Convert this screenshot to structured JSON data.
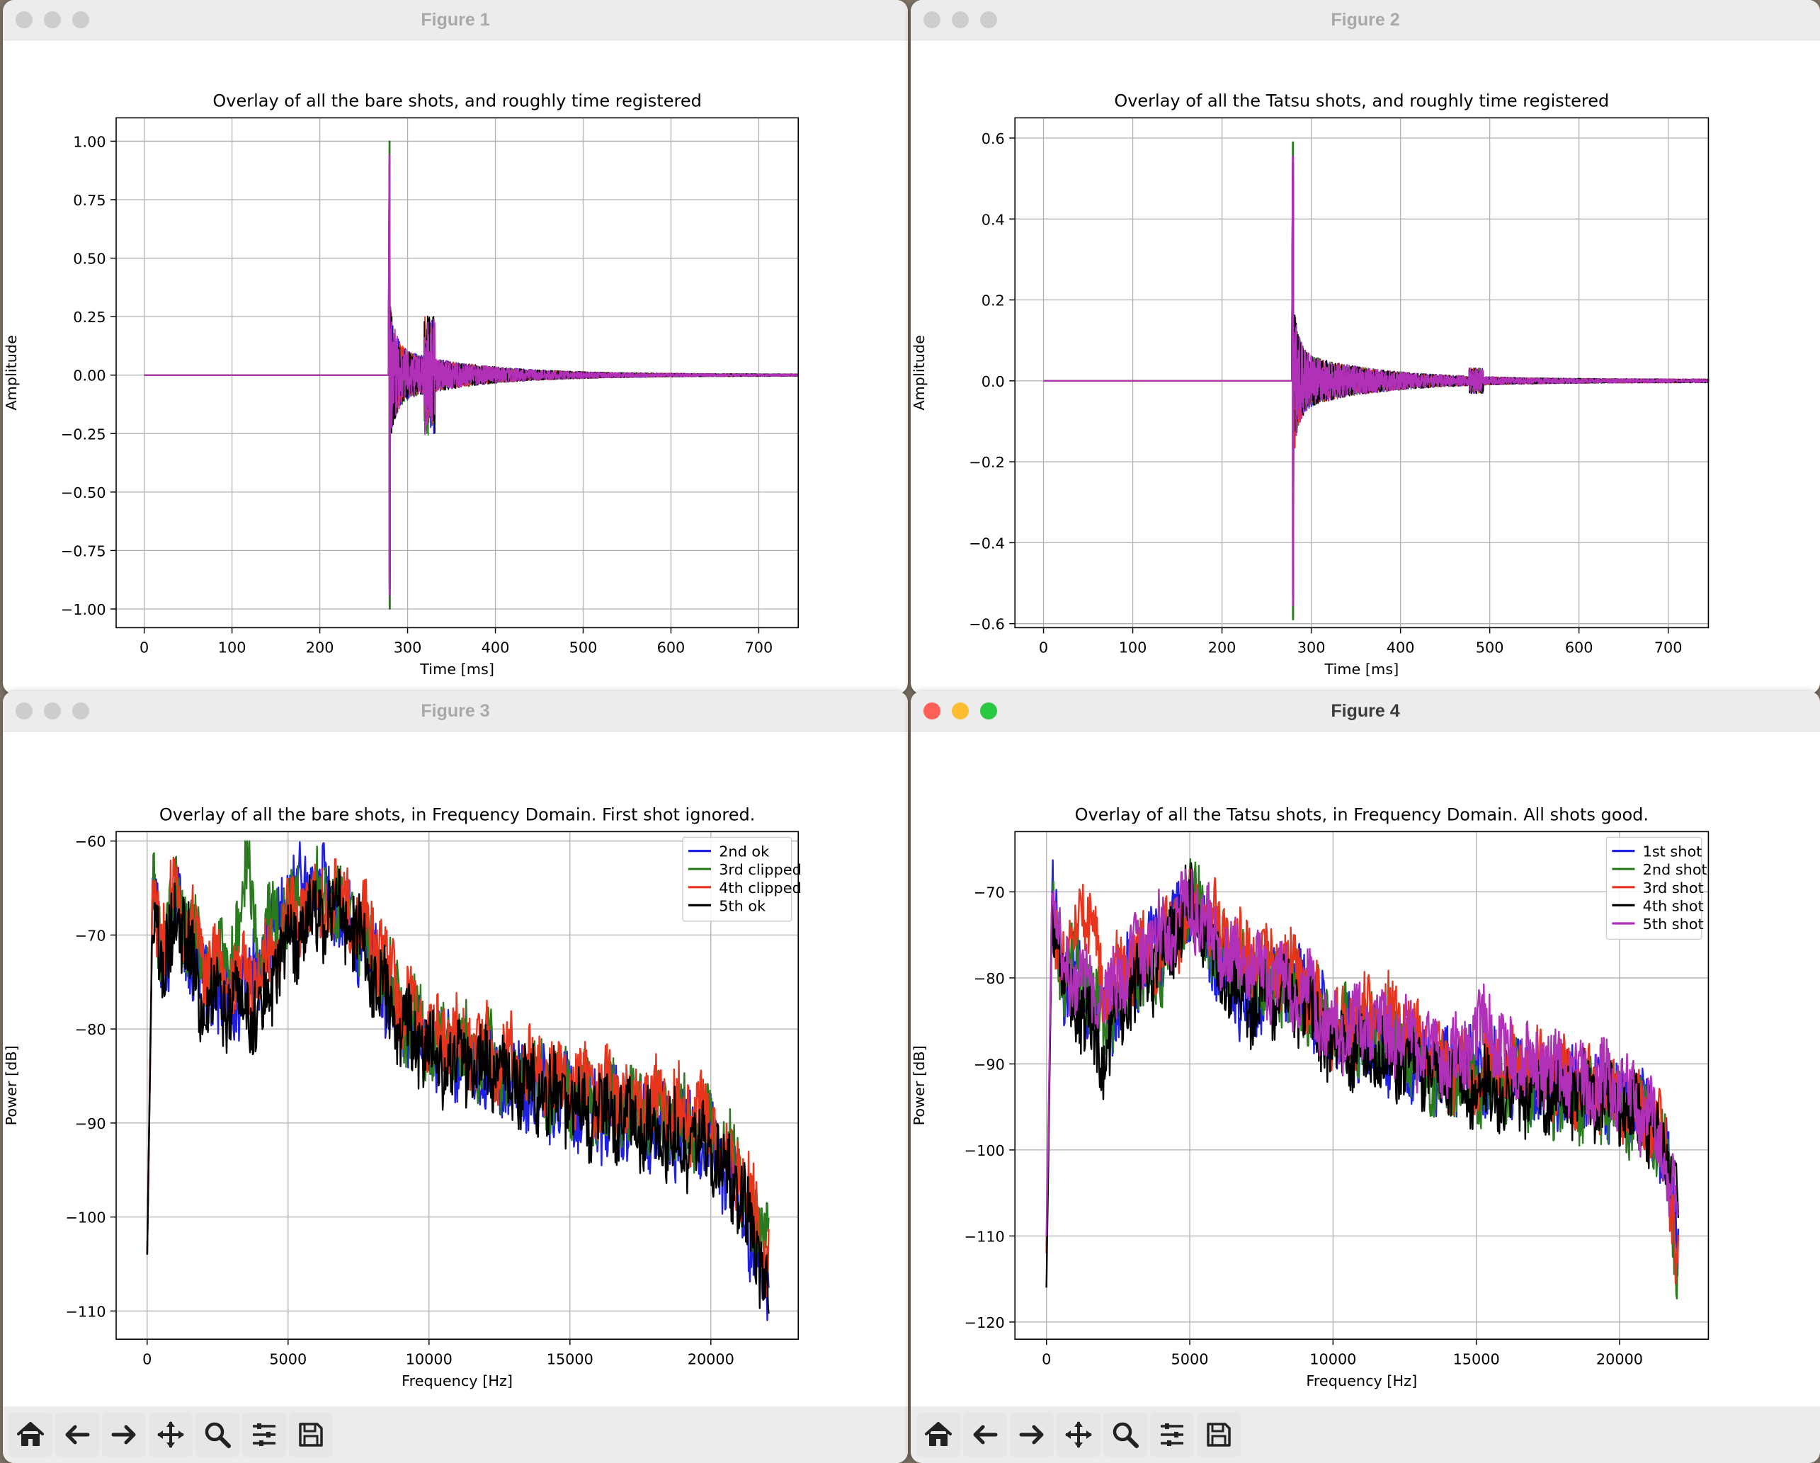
{
  "windows": [
    {
      "title": "Figure 1",
      "active": false
    },
    {
      "title": "Figure 2",
      "active": false
    },
    {
      "title": "Figure 3",
      "active": false
    },
    {
      "title": "Figure 4",
      "active": true
    }
  ],
  "toolbar": {
    "icons": [
      "home-icon",
      "back-arrow-icon",
      "forward-arrow-icon",
      "pan-icon",
      "zoom-icon",
      "configure-subplots-icon",
      "save-icon"
    ]
  },
  "chart_data": [
    {
      "type": "line",
      "title": "Overlay of all the bare shots, and roughly time registered",
      "xlabel": "Time [ms]",
      "ylabel": "Amplitude",
      "xlim": [
        -32,
        745
      ],
      "ylim": [
        -1.08,
        1.1
      ],
      "xticks": [
        0,
        100,
        200,
        300,
        400,
        500,
        600,
        700
      ],
      "yticks": [
        1.0,
        0.75,
        0.5,
        0.25,
        0.0,
        -0.25,
        -0.5,
        -0.75,
        -1.0
      ],
      "ytick_labels": [
        "1.00",
        "0.75",
        "0.50",
        "0.25",
        "0.00",
        "−0.25",
        "−0.50",
        "−0.75",
        "−1.00"
      ],
      "grid": true,
      "series_colors": [
        "#1f1fe6",
        "#2a7a1e",
        "#e8341c",
        "#000000",
        "#b030b8"
      ],
      "onset_ms": 279,
      "end_ms": 745,
      "peak_amplitude": 1.0,
      "min_amplitude": -1.0
    },
    {
      "type": "line",
      "title": "Overlay of all the Tatsu shots, and roughly time registered",
      "xlabel": "Time [ms]",
      "ylabel": "Amplitude",
      "xlim": [
        -32,
        745
      ],
      "ylim": [
        -0.61,
        0.65
      ],
      "xticks": [
        0,
        100,
        200,
        300,
        400,
        500,
        600,
        700
      ],
      "yticks": [
        0.6,
        0.4,
        0.2,
        0.0,
        -0.2,
        -0.4,
        -0.6
      ],
      "ytick_labels": [
        "0.6",
        "0.4",
        "0.2",
        "0.0",
        "−0.2",
        "−0.4",
        "−0.6"
      ],
      "grid": true,
      "series_colors": [
        "#1f1fe6",
        "#2a7a1e",
        "#e8341c",
        "#000000",
        "#b030b8"
      ],
      "onset_ms": 279,
      "end_ms": 745,
      "peak_amplitude": 0.59,
      "min_amplitude": -0.56
    },
    {
      "type": "line",
      "title": "Overlay of all the bare shots, in Frequency Domain.  First shot ignored.",
      "xlabel": "Frequency [Hz]",
      "ylabel": "Power [dB]",
      "xlim": [
        -1100,
        23100
      ],
      "ylim": [
        -113,
        -59
      ],
      "xticks": [
        0,
        5000,
        10000,
        15000,
        20000
      ],
      "yticks": [
        -60,
        -70,
        -80,
        -90,
        -100,
        -110
      ],
      "ytick_labels": [
        "−60",
        "−70",
        "−80",
        "−90",
        "−100",
        "−110"
      ],
      "grid": true,
      "legend_position": "top-right",
      "x_range": [
        0,
        22050
      ],
      "series": [
        {
          "name": "2nd ok",
          "color": "#1f1fe6",
          "anchors": [
            [
              0,
              -104
            ],
            [
              200,
              -66
            ],
            [
              600,
              -74
            ],
            [
              1000,
              -67
            ],
            [
              2000,
              -75
            ],
            [
              3000,
              -77
            ],
            [
              4000,
              -73
            ],
            [
              5000,
              -66
            ],
            [
              6000,
              -65
            ],
            [
              7000,
              -68
            ],
            [
              8000,
              -73
            ],
            [
              9000,
              -79
            ],
            [
              10000,
              -82
            ],
            [
              12000,
              -84
            ],
            [
              14000,
              -87
            ],
            [
              16000,
              -89
            ],
            [
              18000,
              -90
            ],
            [
              20000,
              -92
            ],
            [
              21000,
              -97
            ],
            [
              21600,
              -104
            ],
            [
              22000,
              -108
            ]
          ]
        },
        {
          "name": "3rd clipped",
          "color": "#2a7a1e",
          "anchors": [
            [
              0,
              -104
            ],
            [
              200,
              -65
            ],
            [
              600,
              -72
            ],
            [
              1000,
              -66
            ],
            [
              2000,
              -73
            ],
            [
              3000,
              -72
            ],
            [
              3600,
              -63
            ],
            [
              4000,
              -71
            ],
            [
              5000,
              -67
            ],
            [
              6000,
              -66
            ],
            [
              7000,
              -67
            ],
            [
              8000,
              -72
            ],
            [
              9000,
              -78
            ],
            [
              10000,
              -81
            ],
            [
              12000,
              -83
            ],
            [
              14000,
              -86
            ],
            [
              16000,
              -88
            ],
            [
              18000,
              -89
            ],
            [
              20000,
              -91
            ],
            [
              21000,
              -95
            ],
            [
              21600,
              -102
            ],
            [
              22000,
              -101
            ]
          ]
        },
        {
          "name": "4th clipped",
          "color": "#e8341c",
          "anchors": [
            [
              0,
              -104
            ],
            [
              200,
              -65
            ],
            [
              600,
              -71
            ],
            [
              1000,
              -65
            ],
            [
              2000,
              -73
            ],
            [
              3000,
              -74
            ],
            [
              4000,
              -75
            ],
            [
              5000,
              -68
            ],
            [
              6000,
              -67
            ],
            [
              7000,
              -66
            ],
            [
              8000,
              -70
            ],
            [
              9000,
              -77
            ],
            [
              10000,
              -80
            ],
            [
              12000,
              -82
            ],
            [
              14000,
              -85
            ],
            [
              16000,
              -87
            ],
            [
              18000,
              -88
            ],
            [
              20000,
              -90
            ],
            [
              21000,
              -95
            ],
            [
              21600,
              -100
            ],
            [
              22000,
              -104
            ]
          ]
        },
        {
          "name": "5th ok",
          "color": "#000000",
          "anchors": [
            [
              0,
              -104
            ],
            [
              200,
              -66
            ],
            [
              600,
              -75
            ],
            [
              1000,
              -67
            ],
            [
              2000,
              -77
            ],
            [
              3000,
              -78
            ],
            [
              4000,
              -78
            ],
            [
              5000,
              -71
            ],
            [
              6000,
              -68
            ],
            [
              7000,
              -68
            ],
            [
              8000,
              -74
            ],
            [
              9000,
              -80
            ],
            [
              10000,
              -83
            ],
            [
              12000,
              -84
            ],
            [
              14000,
              -87
            ],
            [
              16000,
              -89
            ],
            [
              18000,
              -91
            ],
            [
              20000,
              -93
            ],
            [
              21000,
              -97
            ],
            [
              21600,
              -104
            ],
            [
              22000,
              -107
            ]
          ]
        }
      ]
    },
    {
      "type": "line",
      "title": "Overlay of all the Tatsu shots, in Frequency Domain.  All shots good.",
      "xlabel": "Frequency [Hz]",
      "ylabel": "Power [dB]",
      "xlim": [
        -1100,
        23100
      ],
      "ylim": [
        -122,
        -63
      ],
      "xticks": [
        0,
        5000,
        10000,
        15000,
        20000
      ],
      "yticks": [
        -70,
        -80,
        -90,
        -100,
        -110,
        -120
      ],
      "ytick_labels": [
        "−70",
        "−80",
        "−90",
        "−100",
        "−110",
        "−120"
      ],
      "grid": true,
      "legend_position": "top-right",
      "x_range": [
        0,
        22050
      ],
      "series": [
        {
          "name": "1st shot",
          "color": "#1f1fe6",
          "anchors": [
            [
              0,
              -112
            ],
            [
              200,
              -71
            ],
            [
              600,
              -80
            ],
            [
              1000,
              -79
            ],
            [
              2000,
              -86
            ],
            [
              3000,
              -79
            ],
            [
              4000,
              -76
            ],
            [
              5000,
              -72
            ],
            [
              6000,
              -78
            ],
            [
              7000,
              -84
            ],
            [
              8000,
              -80
            ],
            [
              9000,
              -82
            ],
            [
              10000,
              -86
            ],
            [
              12000,
              -89
            ],
            [
              14000,
              -91
            ],
            [
              16000,
              -91
            ],
            [
              18000,
              -93
            ],
            [
              20000,
              -94
            ],
            [
              21000,
              -96
            ],
            [
              21600,
              -100
            ],
            [
              22000,
              -110
            ]
          ]
        },
        {
          "name": "2nd shot",
          "color": "#2a7a1e",
          "anchors": [
            [
              0,
              -112
            ],
            [
              200,
              -71
            ],
            [
              600,
              -80
            ],
            [
              1000,
              -78
            ],
            [
              2000,
              -85
            ],
            [
              3000,
              -80
            ],
            [
              4000,
              -80
            ],
            [
              5000,
              -70
            ],
            [
              6000,
              -77
            ],
            [
              7000,
              -80
            ],
            [
              8000,
              -80
            ],
            [
              9000,
              -83
            ],
            [
              10000,
              -85
            ],
            [
              12000,
              -88
            ],
            [
              14000,
              -92
            ],
            [
              16000,
              -92
            ],
            [
              18000,
              -94
            ],
            [
              20000,
              -95
            ],
            [
              21000,
              -97
            ],
            [
              21600,
              -101
            ],
            [
              22000,
              -112
            ]
          ]
        },
        {
          "name": "3rd shot",
          "color": "#e8341c",
          "anchors": [
            [
              0,
              -112
            ],
            [
              200,
              -71
            ],
            [
              600,
              -79
            ],
            [
              1200,
              -70
            ],
            [
              2000,
              -81
            ],
            [
              3000,
              -78
            ],
            [
              4000,
              -77
            ],
            [
              5000,
              -72
            ],
            [
              6000,
              -74
            ],
            [
              7000,
              -78
            ],
            [
              8000,
              -78
            ],
            [
              9000,
              -81
            ],
            [
              10000,
              -86
            ],
            [
              12000,
              -84
            ],
            [
              14000,
              -91
            ],
            [
              16000,
              -90
            ],
            [
              18000,
              -92
            ],
            [
              20000,
              -94
            ],
            [
              21000,
              -96
            ],
            [
              21600,
              -99
            ],
            [
              22000,
              -113
            ]
          ]
        },
        {
          "name": "4th shot",
          "color": "#000000",
          "anchors": [
            [
              0,
              -116
            ],
            [
              200,
              -71
            ],
            [
              600,
              -81
            ],
            [
              1000,
              -83
            ],
            [
              2000,
              -89
            ],
            [
              3000,
              -82
            ],
            [
              4000,
              -78
            ],
            [
              5000,
              -71
            ],
            [
              6000,
              -79
            ],
            [
              7000,
              -83
            ],
            [
              8000,
              -82
            ],
            [
              9000,
              -83
            ],
            [
              10000,
              -88
            ],
            [
              12000,
              -89
            ],
            [
              14000,
              -91
            ],
            [
              16000,
              -94
            ],
            [
              18000,
              -93
            ],
            [
              20000,
              -95
            ],
            [
              21000,
              -97
            ],
            [
              21600,
              -100
            ],
            [
              22000,
              -105
            ]
          ]
        },
        {
          "name": "5th shot",
          "color": "#b030b8",
          "anchors": [
            [
              0,
              -110
            ],
            [
              200,
              -70
            ],
            [
              600,
              -79
            ],
            [
              1000,
              -80
            ],
            [
              2000,
              -83
            ],
            [
              3000,
              -78
            ],
            [
              4000,
              -75
            ],
            [
              5000,
              -71
            ],
            [
              6000,
              -76
            ],
            [
              7000,
              -79
            ],
            [
              8000,
              -81
            ],
            [
              9000,
              -81
            ],
            [
              10000,
              -86
            ],
            [
              12000,
              -86
            ],
            [
              14000,
              -90
            ],
            [
              15500,
              -85
            ],
            [
              16000,
              -89
            ],
            [
              18000,
              -91
            ],
            [
              20000,
              -93
            ],
            [
              21000,
              -96
            ],
            [
              21600,
              -101
            ],
            [
              22000,
              -106
            ]
          ]
        }
      ]
    }
  ]
}
